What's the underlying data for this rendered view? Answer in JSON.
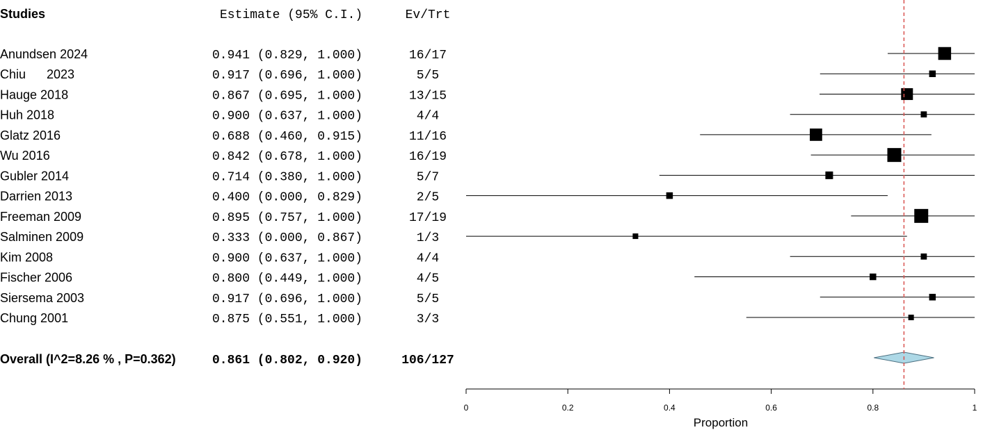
{
  "chart_data": {
    "type": "forest",
    "headers": {
      "studies": "Studies",
      "estimate": "Estimate (95% C.I.)",
      "events": "Ev/Trt"
    },
    "studies": [
      {
        "name": "Anundsen 2024",
        "estimate": 0.941,
        "lower": 0.829,
        "upper": 1.0,
        "events": "16/17",
        "text": "0.941 (0.829, 1.000)",
        "n": 17
      },
      {
        "name": "Chiu      2023",
        "estimate": 0.917,
        "lower": 0.696,
        "upper": 1.0,
        "events": "5/5",
        "text": "0.917 (0.696, 1.000)",
        "n": 5
      },
      {
        "name": "Hauge 2018",
        "estimate": 0.867,
        "lower": 0.695,
        "upper": 1.0,
        "events": "13/15",
        "text": "0.867 (0.695, 1.000)",
        "n": 15
      },
      {
        "name": "Huh 2018",
        "estimate": 0.9,
        "lower": 0.637,
        "upper": 1.0,
        "events": "4/4",
        "text": "0.900 (0.637, 1.000)",
        "n": 4
      },
      {
        "name": "Glatz 2016",
        "estimate": 0.688,
        "lower": 0.46,
        "upper": 0.915,
        "events": "11/16",
        "text": "0.688 (0.460, 0.915)",
        "n": 16
      },
      {
        "name": "Wu 2016",
        "estimate": 0.842,
        "lower": 0.678,
        "upper": 1.0,
        "events": "16/19",
        "text": "0.842 (0.678, 1.000)",
        "n": 19
      },
      {
        "name": "Gubler 2014",
        "estimate": 0.714,
        "lower": 0.38,
        "upper": 1.0,
        "events": "5/7",
        "text": "0.714 (0.380, 1.000)",
        "n": 7
      },
      {
        "name": "Darrien 2013",
        "estimate": 0.4,
        "lower": 0.0,
        "upper": 0.829,
        "events": "2/5",
        "text": "0.400 (0.000, 0.829)",
        "n": 5
      },
      {
        "name": "Freeman 2009",
        "estimate": 0.895,
        "lower": 0.757,
        "upper": 1.0,
        "events": "17/19",
        "text": "0.895 (0.757, 1.000)",
        "n": 19
      },
      {
        "name": "Salminen 2009",
        "estimate": 0.333,
        "lower": 0.0,
        "upper": 0.867,
        "events": "1/3",
        "text": "0.333 (0.000, 0.867)",
        "n": 3
      },
      {
        "name": "Kim 2008",
        "estimate": 0.9,
        "lower": 0.637,
        "upper": 1.0,
        "events": "4/4",
        "text": "0.900 (0.637, 1.000)",
        "n": 4
      },
      {
        "name": "Fischer 2006",
        "estimate": 0.8,
        "lower": 0.449,
        "upper": 1.0,
        "events": "4/5",
        "text": "0.800 (0.449, 1.000)",
        "n": 5
      },
      {
        "name": "Siersema 2003",
        "estimate": 0.917,
        "lower": 0.696,
        "upper": 1.0,
        "events": "5/5",
        "text": "0.917 (0.696, 1.000)",
        "n": 5
      },
      {
        "name": "Chung 2001",
        "estimate": 0.875,
        "lower": 0.551,
        "upper": 1.0,
        "events": "3/3",
        "text": "0.875 (0.551, 1.000)",
        "n": 3
      }
    ],
    "overall": {
      "label": "Overall (I^2=8.26 % , P=0.362)",
      "estimate": 0.861,
      "lower": 0.802,
      "upper": 0.92,
      "events": "106/127",
      "text": "0.861 (0.802, 0.920)"
    },
    "xaxis": {
      "label": "Proportion",
      "range": [
        0,
        1
      ],
      "ticks": [
        0,
        0.2,
        0.4,
        0.6,
        0.8,
        1
      ],
      "tick_labels": [
        "0",
        "0.2",
        "0.4",
        "0.6",
        "0.8",
        "1"
      ]
    },
    "colors": {
      "marker": "#000000",
      "reference_line": "#d9534f",
      "diamond_fill": "#add8e6",
      "diamond_stroke": "#4a6f80"
    }
  }
}
